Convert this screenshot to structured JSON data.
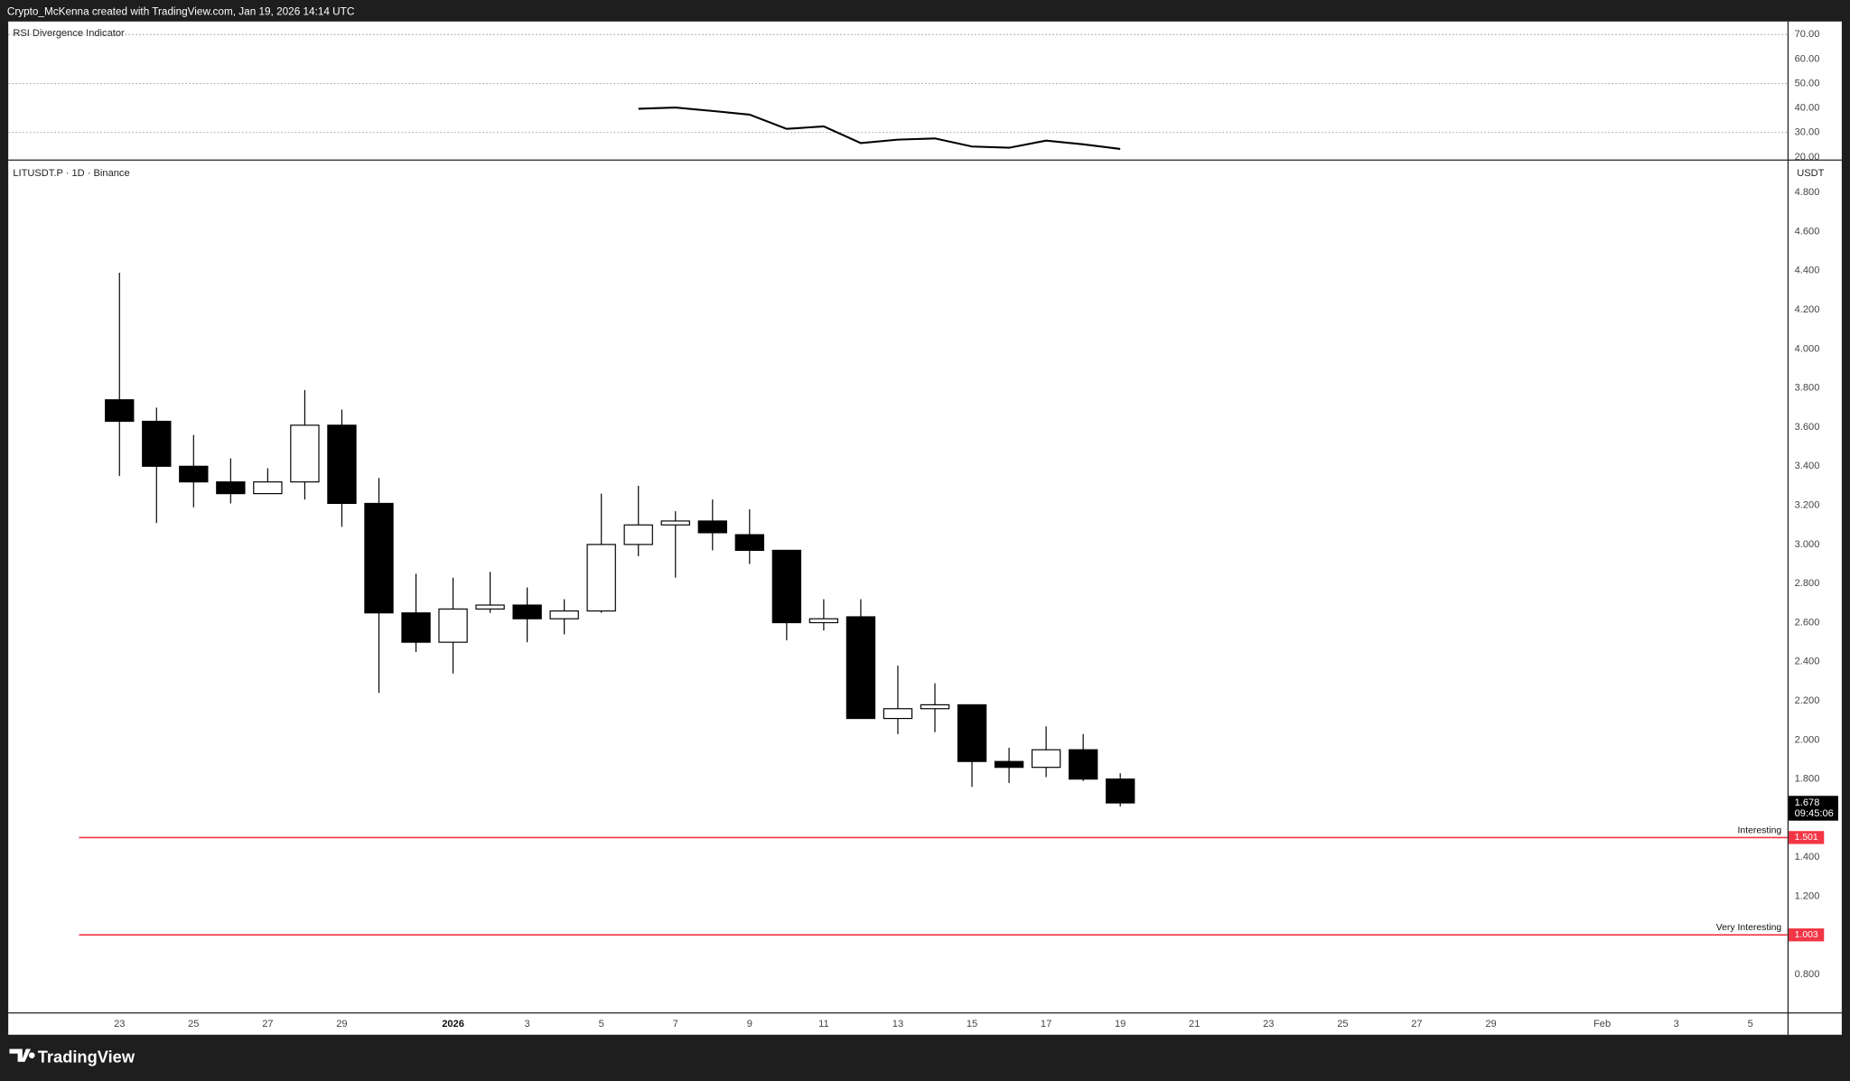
{
  "header": {
    "attribution": "Crypto_McKenna created with TradingView.com, Jan 19, 2026 14:14 UTC"
  },
  "footer": {
    "brand": "TradingView"
  },
  "chart_data": [
    {
      "type": "line",
      "title": "RSI Divergence Indicator",
      "x": [
        "2026-01-06",
        "2026-01-07",
        "2026-01-08",
        "2026-01-09",
        "2026-01-10",
        "2026-01-11",
        "2026-01-12",
        "2026-01-13",
        "2026-01-14",
        "2026-01-15",
        "2026-01-16",
        "2026-01-17",
        "2026-01-18",
        "2026-01-19"
      ],
      "series": [
        {
          "color": "#000000",
          "values": [
            39.7,
            40.2,
            38.8,
            37.3,
            31.5,
            32.5,
            25.7,
            27.1,
            27.6,
            24.3,
            23.8,
            26.7,
            25.2,
            23.3
          ]
        }
      ],
      "ylim": [
        19,
        75.3
      ],
      "yticks": [
        {
          "value": 70,
          "label": "70.00"
        },
        {
          "value": 60,
          "label": "60.00"
        },
        {
          "value": 50,
          "label": "50.00"
        },
        {
          "value": 40,
          "label": "40.00"
        },
        {
          "value": 30,
          "label": "30.00"
        },
        {
          "value": 20,
          "label": "20.00"
        }
      ],
      "levels": [
        70,
        50,
        30
      ]
    },
    {
      "type": "candlestick",
      "title": "LITUSDT.P · 1D · Binance",
      "axis_unit": "USDT",
      "x": [
        "2025-12-23",
        "2025-12-24",
        "2025-12-25",
        "2025-12-26",
        "2025-12-27",
        "2025-12-28",
        "2025-12-29",
        "2025-12-30",
        "2025-12-31",
        "2026-01-01",
        "2026-01-02",
        "2026-01-03",
        "2026-01-04",
        "2026-01-05",
        "2026-01-06",
        "2026-01-07",
        "2026-01-08",
        "2026-01-09",
        "2026-01-10",
        "2026-01-11",
        "2026-01-12",
        "2026-01-13",
        "2026-01-14",
        "2026-01-15",
        "2026-01-16",
        "2026-01-17",
        "2026-01-18",
        "2026-01-19"
      ],
      "open": [
        3.74,
        3.63,
        3.4,
        3.32,
        3.26,
        3.32,
        3.61,
        3.21,
        2.65,
        2.5,
        2.67,
        2.69,
        2.62,
        2.66,
        3.0,
        3.1,
        3.12,
        3.05,
        2.97,
        2.6,
        2.63,
        2.11,
        2.16,
        2.18,
        1.89,
        1.86,
        1.95,
        1.8
      ],
      "high": [
        4.39,
        3.7,
        3.56,
        3.44,
        3.39,
        3.79,
        3.69,
        3.34,
        2.85,
        2.83,
        2.86,
        2.78,
        2.72,
        3.26,
        3.3,
        3.17,
        3.23,
        3.18,
        2.97,
        2.72,
        2.72,
        2.38,
        2.29,
        2.18,
        1.96,
        2.07,
        2.03,
        1.83
      ],
      "low": [
        3.35,
        3.11,
        3.19,
        3.21,
        3.26,
        3.23,
        3.09,
        2.24,
        2.45,
        2.34,
        2.65,
        2.5,
        2.54,
        2.65,
        2.94,
        2.83,
        2.97,
        2.9,
        2.51,
        2.56,
        2.11,
        2.03,
        2.04,
        1.76,
        1.78,
        1.81,
        1.79,
        1.66
      ],
      "close": [
        3.63,
        3.4,
        3.32,
        3.26,
        3.32,
        3.61,
        3.21,
        2.65,
        2.5,
        2.67,
        2.69,
        2.62,
        2.66,
        3.0,
        3.1,
        3.12,
        3.06,
        2.97,
        2.6,
        2.62,
        2.11,
        2.16,
        2.18,
        1.89,
        1.86,
        1.95,
        1.8,
        1.678
      ],
      "countdown": "09:45:06",
      "ylim": [
        0.607,
        4.957
      ],
      "yticks": [
        {
          "value": 4.8,
          "label": "4.800"
        },
        {
          "value": 4.6,
          "label": "4.600"
        },
        {
          "value": 4.4,
          "label": "4.400"
        },
        {
          "value": 4.2,
          "label": "4.200"
        },
        {
          "value": 4.0,
          "label": "4.000"
        },
        {
          "value": 3.8,
          "label": "3.800"
        },
        {
          "value": 3.6,
          "label": "3.600"
        },
        {
          "value": 3.4,
          "label": "3.400"
        },
        {
          "value": 3.2,
          "label": "3.200"
        },
        {
          "value": 3.0,
          "label": "3.000"
        },
        {
          "value": 2.8,
          "label": "2.800"
        },
        {
          "value": 2.6,
          "label": "2.600"
        },
        {
          "value": 2.4,
          "label": "2.400"
        },
        {
          "value": 2.2,
          "label": "2.200"
        },
        {
          "value": 2.0,
          "label": "2.000"
        },
        {
          "value": 1.8,
          "label": "1.800"
        },
        {
          "value": 1.4,
          "label": "1.400"
        },
        {
          "value": 1.2,
          "label": "1.200"
        },
        {
          "value": 0.8,
          "label": "0.800"
        }
      ],
      "hlines": [
        {
          "name": "Interesting",
          "value": 1.501,
          "color": "#f23645"
        },
        {
          "name": "Very Interesting",
          "value": 1.003,
          "color": "#f23645"
        }
      ],
      "xlim": [
        "2025-12-20",
        "2026-02-06"
      ],
      "xticks": [
        {
          "value": "2025-12-23",
          "label": "23"
        },
        {
          "value": "2025-12-25",
          "label": "25"
        },
        {
          "value": "2025-12-27",
          "label": "27"
        },
        {
          "value": "2025-12-29",
          "label": "29"
        },
        {
          "value": "2026-01-01",
          "label": "2026"
        },
        {
          "value": "2026-01-03",
          "label": "3"
        },
        {
          "value": "2026-01-05",
          "label": "5"
        },
        {
          "value": "2026-01-07",
          "label": "7"
        },
        {
          "value": "2026-01-09",
          "label": "9"
        },
        {
          "value": "2026-01-11",
          "label": "11"
        },
        {
          "value": "2026-01-13",
          "label": "13"
        },
        {
          "value": "2026-01-15",
          "label": "15"
        },
        {
          "value": "2026-01-17",
          "label": "17"
        },
        {
          "value": "2026-01-19",
          "label": "19"
        },
        {
          "value": "2026-01-21",
          "label": "21"
        },
        {
          "value": "2026-01-23",
          "label": "23"
        },
        {
          "value": "2026-01-25",
          "label": "25"
        },
        {
          "value": "2026-01-27",
          "label": "27"
        },
        {
          "value": "2026-01-29",
          "label": "29"
        },
        {
          "value": "2026-02-01",
          "label": "Feb"
        },
        {
          "value": "2026-02-03",
          "label": "3"
        },
        {
          "value": "2026-02-05",
          "label": "5"
        }
      ]
    }
  ]
}
